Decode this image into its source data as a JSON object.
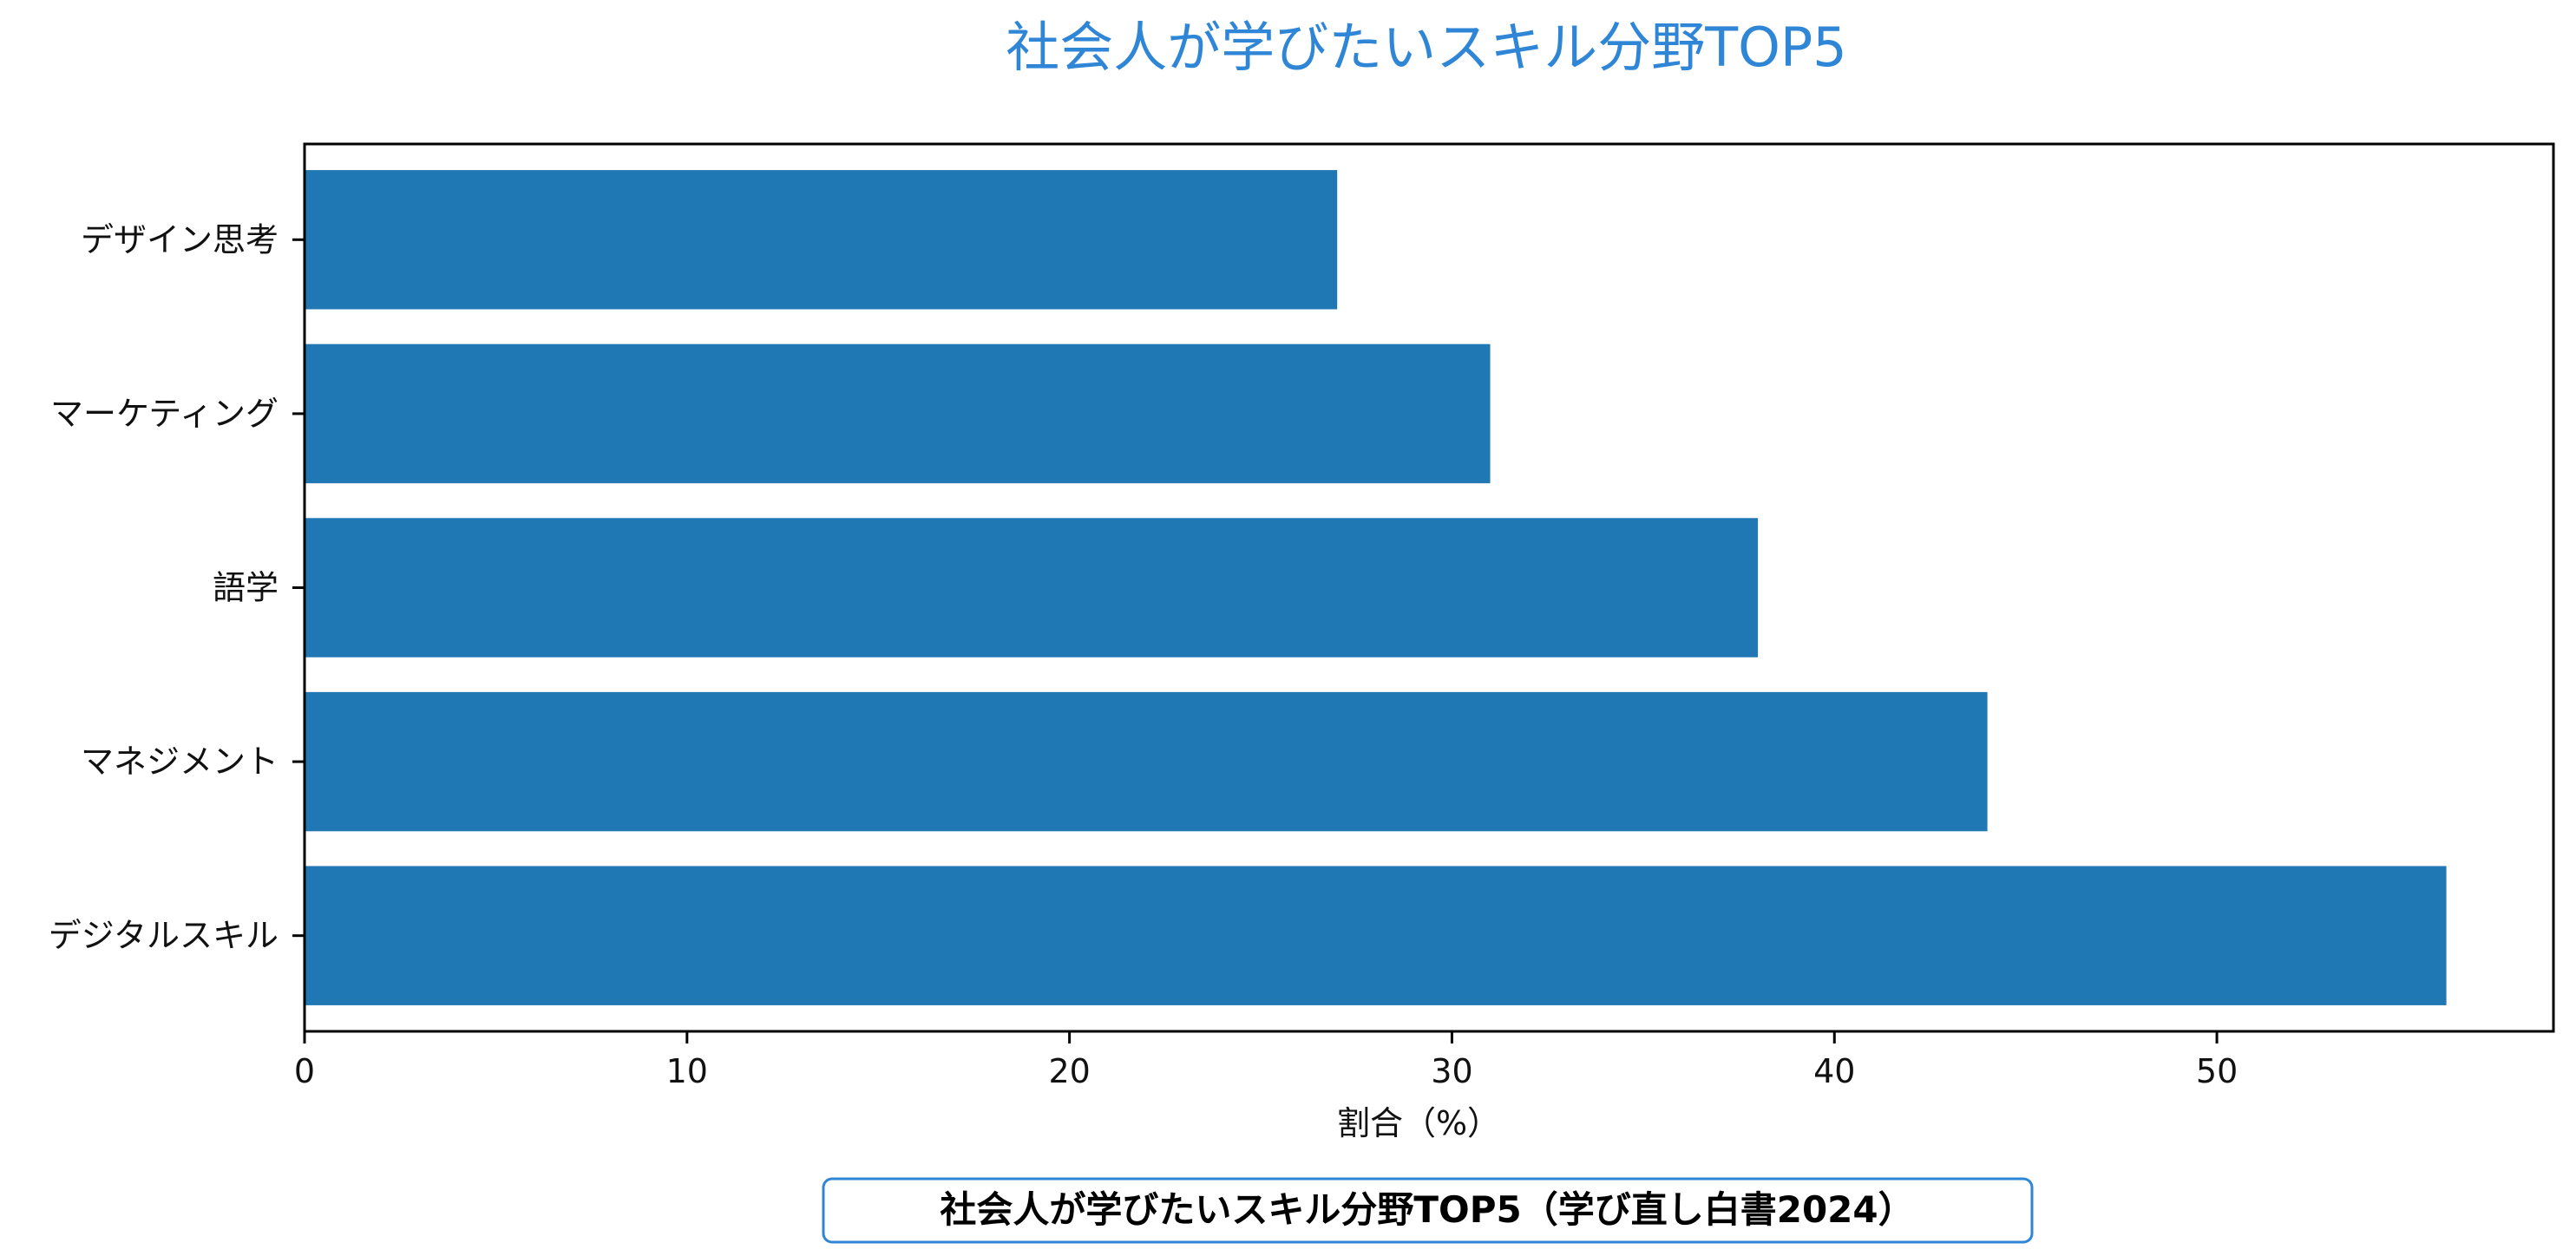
{
  "chart_data": {
    "type": "bar",
    "orientation": "horizontal",
    "title": "社会人が学びたいスキル分野TOP5",
    "xlabel": "割合（%）",
    "ylabel": "",
    "categories": [
      "デジタルスキル",
      "マネジメント",
      "語学",
      "マーケティング",
      "デザイン思考"
    ],
    "values": [
      56,
      44,
      38,
      31,
      27
    ],
    "xlim": [
      0,
      58.8
    ],
    "xticks": [
      0,
      10,
      20,
      30,
      40,
      50
    ],
    "bar_color": "#1f77b4",
    "title_color": "#2f86d6",
    "grid": false,
    "legend": "none",
    "caption": "社会人が学びたいスキル分野TOP5（学び直し白書2024）",
    "caption_border_color": "#2f86d6"
  }
}
